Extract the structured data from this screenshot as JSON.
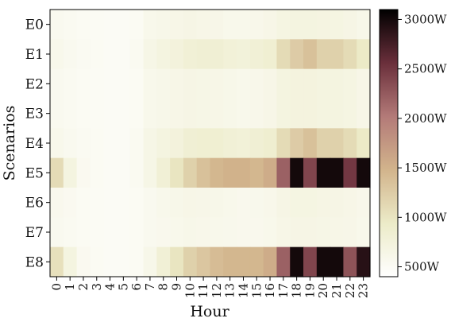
{
  "chart_data": {
    "type": "heatmap",
    "xlabel": "Hour",
    "ylabel": "Scenarios",
    "x": [
      "0",
      "1",
      "2",
      "3",
      "4",
      "5",
      "6",
      "7",
      "8",
      "9",
      "10",
      "11",
      "12",
      "13",
      "14",
      "15",
      "16",
      "17",
      "18",
      "19",
      "20",
      "21",
      "22",
      "23"
    ],
    "y": [
      "E0",
      "E1",
      "E2",
      "E3",
      "E4",
      "E5",
      "E6",
      "E7",
      "E8"
    ],
    "values": [
      [
        560,
        540,
        520,
        510,
        500,
        500,
        520,
        600,
        620,
        640,
        660,
        640,
        630,
        600,
        600,
        610,
        640,
        680,
        700,
        700,
        690,
        680,
        660,
        620
      ],
      [
        600,
        560,
        530,
        520,
        500,
        500,
        540,
        650,
        700,
        740,
        800,
        820,
        820,
        780,
        760,
        800,
        840,
        1100,
        1250,
        1350,
        1200,
        1200,
        1100,
        950
      ],
      [
        560,
        540,
        520,
        510,
        500,
        500,
        520,
        600,
        620,
        640,
        660,
        650,
        640,
        620,
        600,
        610,
        640,
        700,
        720,
        720,
        700,
        700,
        680,
        640
      ],
      [
        560,
        540,
        520,
        510,
        500,
        500,
        520,
        600,
        620,
        640,
        660,
        650,
        640,
        620,
        600,
        610,
        640,
        700,
        720,
        720,
        700,
        700,
        680,
        640
      ],
      [
        600,
        560,
        530,
        520,
        500,
        500,
        540,
        650,
        700,
        740,
        820,
        840,
        840,
        800,
        780,
        820,
        860,
        1100,
        1250,
        1350,
        1200,
        1200,
        1100,
        950
      ],
      [
        1100,
        700,
        550,
        520,
        500,
        500,
        540,
        650,
        800,
        1000,
        1200,
        1350,
        1450,
        1500,
        1500,
        1450,
        1550,
        2200,
        3000,
        2400,
        3000,
        3000,
        2500,
        3000
      ],
      [
        580,
        550,
        520,
        510,
        500,
        500,
        520,
        560,
        600,
        620,
        640,
        630,
        620,
        600,
        580,
        590,
        610,
        660,
        680,
        680,
        670,
        660,
        640,
        610
      ],
      [
        560,
        540,
        520,
        510,
        500,
        500,
        520,
        560,
        580,
        600,
        620,
        610,
        600,
        590,
        580,
        580,
        600,
        640,
        660,
        660,
        650,
        640,
        630,
        600
      ],
      [
        1050,
        700,
        550,
        520,
        500,
        500,
        520,
        620,
        800,
        1000,
        1200,
        1300,
        1400,
        1450,
        1450,
        1450,
        1550,
        2200,
        3000,
        2400,
        3000,
        3000,
        2300,
        2900
      ]
    ],
    "colorbar": {
      "min": 400,
      "max": 3100,
      "ticks": [
        500,
        1000,
        1500,
        2000,
        2500,
        3000
      ],
      "tick_labels": [
        "500W",
        "1000W",
        "1500W",
        "2000W",
        "2500W",
        "3000W"
      ]
    },
    "colormap": [
      "#ffffff",
      "#ecebc8",
      "#d2b48c",
      "#b37a78",
      "#6a2f3b",
      "#000000"
    ]
  }
}
